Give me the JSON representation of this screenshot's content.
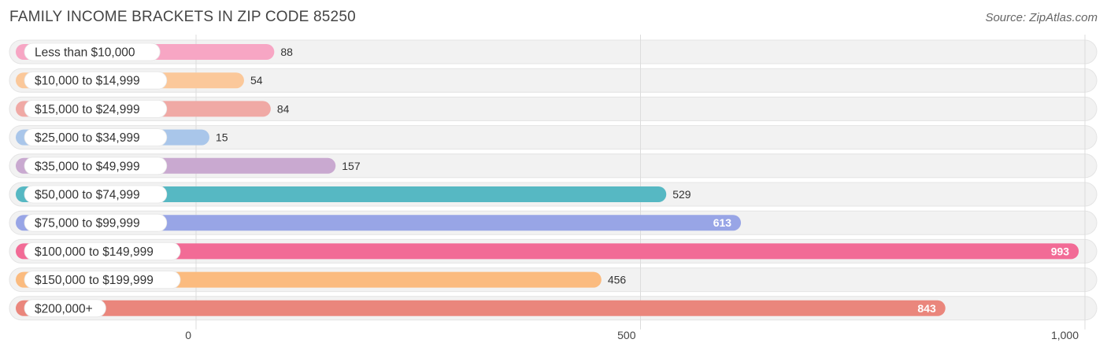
{
  "title": "FAMILY INCOME BRACKETS IN ZIP CODE 85250",
  "source": "Source: ZipAtlas.com",
  "chart_data": {
    "type": "bar",
    "orientation": "horizontal",
    "title": "FAMILY INCOME BRACKETS IN ZIP CODE 85250",
    "categories": [
      "Less than $10,000",
      "$10,000 to $14,999",
      "$15,000 to $24,999",
      "$25,000 to $34,999",
      "$35,000 to $49,999",
      "$50,000 to $74,999",
      "$75,000 to $99,999",
      "$100,000 to $149,999",
      "$150,000 to $199,999",
      "$200,000+"
    ],
    "values": [
      88,
      54,
      84,
      15,
      157,
      529,
      613,
      993,
      456,
      843
    ],
    "value_labels": [
      "88",
      "54",
      "84",
      "15",
      "157",
      "529",
      "613",
      "993",
      "456",
      "843"
    ],
    "colors": [
      "#f7a6c4",
      "#fbc89a",
      "#f0a9a5",
      "#a9c6ea",
      "#c9a9d0",
      "#56b8c3",
      "#98a5e6",
      "#f26b96",
      "#fbbb7f",
      "#ea867c"
    ],
    "xlim": [
      0,
      1000
    ],
    "xticks": [
      0,
      500,
      1000
    ],
    "xtick_labels": [
      "0",
      "500",
      "1,000"
    ],
    "grid": true,
    "legend": "none"
  }
}
